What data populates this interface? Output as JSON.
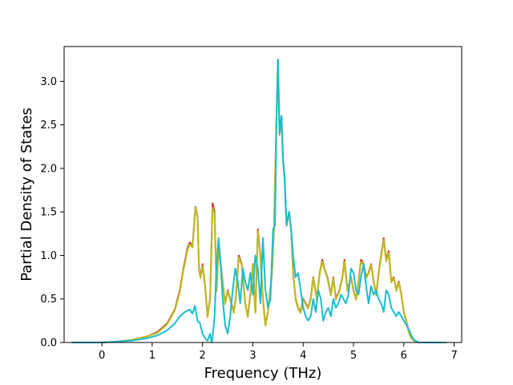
{
  "chart_data": {
    "type": "line",
    "title": "",
    "xlabel": "Frequency (THz)",
    "ylabel": "Partial Density of States",
    "xlim": [
      -0.75,
      7.15
    ],
    "ylim": [
      0.0,
      3.4
    ],
    "x_ticks": [
      0,
      1,
      2,
      3,
      4,
      5,
      6,
      7
    ],
    "x_tick_labels": [
      "0",
      "1",
      "2",
      "3",
      "4",
      "5",
      "6",
      "7"
    ],
    "y_ticks": [
      0.0,
      0.5,
      1.0,
      1.5,
      2.0,
      2.5,
      3.0
    ],
    "y_tick_labels": [
      "0.0",
      "0.5",
      "1.0",
      "1.5",
      "2.0",
      "2.5",
      "3.0"
    ],
    "grid": false,
    "legend": "none",
    "series": [
      {
        "color": "#d62728",
        "points": [
          [
            -0.6,
            0
          ],
          [
            0,
            0.0
          ],
          [
            0.3,
            0.01
          ],
          [
            0.6,
            0.03
          ],
          [
            0.9,
            0.07
          ],
          [
            1.1,
            0.12
          ],
          [
            1.3,
            0.22
          ],
          [
            1.45,
            0.38
          ],
          [
            1.55,
            0.6
          ],
          [
            1.62,
            0.85
          ],
          [
            1.7,
            1.08
          ],
          [
            1.75,
            1.15
          ],
          [
            1.8,
            1.1
          ],
          [
            1.86,
            1.56
          ],
          [
            1.9,
            1.45
          ],
          [
            1.93,
            0.85
          ],
          [
            1.96,
            0.75
          ],
          [
            2.0,
            0.9
          ],
          [
            2.05,
            0.65
          ],
          [
            2.1,
            0.3
          ],
          [
            2.15,
            0.5
          ],
          [
            2.2,
            1.6
          ],
          [
            2.24,
            1.5
          ],
          [
            2.28,
            0.6
          ],
          [
            2.32,
            1.1
          ],
          [
            2.38,
            0.8
          ],
          [
            2.45,
            0.45
          ],
          [
            2.5,
            0.6
          ],
          [
            2.55,
            0.5
          ],
          [
            2.62,
            0.35
          ],
          [
            2.66,
            0.5
          ],
          [
            2.72,
            1.0
          ],
          [
            2.78,
            0.9
          ],
          [
            2.85,
            0.45
          ],
          [
            2.9,
            0.3
          ],
          [
            2.95,
            0.55
          ],
          [
            3.0,
            0.9
          ],
          [
            3.05,
            0.35
          ],
          [
            3.1,
            1.3
          ],
          [
            3.15,
            1.0
          ],
          [
            3.2,
            0.5
          ],
          [
            3.25,
            0.2
          ],
          [
            3.3,
            0.35
          ],
          [
            3.38,
            0.8
          ],
          [
            3.42,
            1.3
          ],
          [
            3.47,
            2.6
          ],
          [
            3.5,
            3.25
          ],
          [
            3.53,
            2.4
          ],
          [
            3.57,
            2.6
          ],
          [
            3.6,
            2.1
          ],
          [
            3.63,
            1.9
          ],
          [
            3.67,
            1.35
          ],
          [
            3.72,
            1.5
          ],
          [
            3.76,
            1.3
          ],
          [
            3.8,
            0.8
          ],
          [
            3.85,
            0.5
          ],
          [
            3.9,
            0.4
          ],
          [
            3.95,
            0.35
          ],
          [
            4.0,
            0.5
          ],
          [
            4.05,
            0.45
          ],
          [
            4.1,
            0.4
          ],
          [
            4.15,
            0.5
          ],
          [
            4.2,
            0.75
          ],
          [
            4.27,
            0.5
          ],
          [
            4.33,
            0.8
          ],
          [
            4.38,
            0.95
          ],
          [
            4.42,
            0.85
          ],
          [
            4.48,
            0.75
          ],
          [
            4.55,
            0.55
          ],
          [
            4.6,
            0.75
          ],
          [
            4.65,
            0.5
          ],
          [
            4.72,
            0.6
          ],
          [
            4.78,
            0.75
          ],
          [
            4.82,
            0.95
          ],
          [
            4.88,
            0.6
          ],
          [
            4.95,
            0.75
          ],
          [
            5.0,
            0.6
          ],
          [
            5.05,
            0.5
          ],
          [
            5.1,
            0.7
          ],
          [
            5.15,
            0.95
          ],
          [
            5.2,
            0.9
          ],
          [
            5.25,
            0.75
          ],
          [
            5.3,
            0.8
          ],
          [
            5.35,
            0.9
          ],
          [
            5.4,
            0.7
          ],
          [
            5.45,
            0.55
          ],
          [
            5.5,
            0.8
          ],
          [
            5.55,
            1.0
          ],
          [
            5.6,
            1.2
          ],
          [
            5.65,
            0.95
          ],
          [
            5.7,
            1.05
          ],
          [
            5.75,
            0.7
          ],
          [
            5.8,
            0.75
          ],
          [
            5.85,
            0.6
          ],
          [
            5.9,
            0.7
          ],
          [
            5.95,
            0.55
          ],
          [
            6.0,
            0.35
          ],
          [
            6.05,
            0.25
          ],
          [
            6.1,
            0.12
          ],
          [
            6.15,
            0.05
          ],
          [
            6.2,
            0.02
          ],
          [
            6.3,
            0
          ],
          [
            6.85,
            0
          ]
        ]
      },
      {
        "color": "#bcbd22",
        "points": [
          [
            -0.6,
            0
          ],
          [
            0,
            0.0
          ],
          [
            0.3,
            0.01
          ],
          [
            0.6,
            0.03
          ],
          [
            0.9,
            0.07
          ],
          [
            1.1,
            0.11
          ],
          [
            1.3,
            0.21
          ],
          [
            1.45,
            0.37
          ],
          [
            1.55,
            0.58
          ],
          [
            1.62,
            0.83
          ],
          [
            1.7,
            1.06
          ],
          [
            1.75,
            1.13
          ],
          [
            1.8,
            1.09
          ],
          [
            1.86,
            1.55
          ],
          [
            1.9,
            1.44
          ],
          [
            1.93,
            0.84
          ],
          [
            1.96,
            0.74
          ],
          [
            2.0,
            0.88
          ],
          [
            2.05,
            0.64
          ],
          [
            2.1,
            0.29
          ],
          [
            2.15,
            0.49
          ],
          [
            2.2,
            1.55
          ],
          [
            2.24,
            1.48
          ],
          [
            2.28,
            0.59
          ],
          [
            2.32,
            1.08
          ],
          [
            2.38,
            0.79
          ],
          [
            2.45,
            0.44
          ],
          [
            2.5,
            0.59
          ],
          [
            2.55,
            0.49
          ],
          [
            2.62,
            0.34
          ],
          [
            2.66,
            0.49
          ],
          [
            2.72,
            0.98
          ],
          [
            2.78,
            0.89
          ],
          [
            2.85,
            0.44
          ],
          [
            2.9,
            0.29
          ],
          [
            2.95,
            0.54
          ],
          [
            3.0,
            0.89
          ],
          [
            3.05,
            0.34
          ],
          [
            3.1,
            1.28
          ],
          [
            3.15,
            0.98
          ],
          [
            3.2,
            0.49
          ],
          [
            3.25,
            0.19
          ],
          [
            3.3,
            0.34
          ],
          [
            3.38,
            0.79
          ],
          [
            3.42,
            1.28
          ],
          [
            3.47,
            2.58
          ],
          [
            3.5,
            3.24
          ],
          [
            3.53,
            2.38
          ],
          [
            3.57,
            2.58
          ],
          [
            3.6,
            2.08
          ],
          [
            3.63,
            1.88
          ],
          [
            3.67,
            1.34
          ],
          [
            3.72,
            1.49
          ],
          [
            3.76,
            1.29
          ],
          [
            3.8,
            0.79
          ],
          [
            3.85,
            0.49
          ],
          [
            3.9,
            0.39
          ],
          [
            3.95,
            0.34
          ],
          [
            4.0,
            0.49
          ],
          [
            4.05,
            0.44
          ],
          [
            4.1,
            0.39
          ],
          [
            4.15,
            0.49
          ],
          [
            4.2,
            0.74
          ],
          [
            4.27,
            0.49
          ],
          [
            4.33,
            0.79
          ],
          [
            4.38,
            0.93
          ],
          [
            4.42,
            0.84
          ],
          [
            4.48,
            0.74
          ],
          [
            4.55,
            0.54
          ],
          [
            4.6,
            0.74
          ],
          [
            4.65,
            0.49
          ],
          [
            4.72,
            0.59
          ],
          [
            4.78,
            0.74
          ],
          [
            4.82,
            0.93
          ],
          [
            4.88,
            0.59
          ],
          [
            4.95,
            0.74
          ],
          [
            5.0,
            0.59
          ],
          [
            5.05,
            0.49
          ],
          [
            5.1,
            0.69
          ],
          [
            5.15,
            0.93
          ],
          [
            5.2,
            0.89
          ],
          [
            5.25,
            0.74
          ],
          [
            5.3,
            0.79
          ],
          [
            5.35,
            0.89
          ],
          [
            5.4,
            0.69
          ],
          [
            5.45,
            0.54
          ],
          [
            5.5,
            0.79
          ],
          [
            5.55,
            0.98
          ],
          [
            5.6,
            1.18
          ],
          [
            5.65,
            0.93
          ],
          [
            5.7,
            1.03
          ],
          [
            5.75,
            0.69
          ],
          [
            5.8,
            0.74
          ],
          [
            5.85,
            0.59
          ],
          [
            5.9,
            0.69
          ],
          [
            5.95,
            0.54
          ],
          [
            6.0,
            0.34
          ],
          [
            6.05,
            0.24
          ],
          [
            6.1,
            0.11
          ],
          [
            6.15,
            0.05
          ],
          [
            6.2,
            0.02
          ],
          [
            6.3,
            0
          ],
          [
            6.85,
            0
          ]
        ]
      },
      {
        "color": "#17becf",
        "points": [
          [
            -0.6,
            0
          ],
          [
            0,
            0.0
          ],
          [
            0.3,
            0.01
          ],
          [
            0.6,
            0.02
          ],
          [
            0.9,
            0.05
          ],
          [
            1.1,
            0.08
          ],
          [
            1.3,
            0.14
          ],
          [
            1.45,
            0.22
          ],
          [
            1.55,
            0.3
          ],
          [
            1.65,
            0.35
          ],
          [
            1.75,
            0.38
          ],
          [
            1.8,
            0.33
          ],
          [
            1.85,
            0.42
          ],
          [
            1.9,
            0.25
          ],
          [
            1.95,
            0.22
          ],
          [
            2.0,
            0.1
          ],
          [
            2.05,
            0.05
          ],
          [
            2.1,
            0.02
          ],
          [
            2.15,
            0.1
          ],
          [
            2.18,
            0.0
          ],
          [
            2.2,
            0.05
          ],
          [
            2.24,
            0.3
          ],
          [
            2.28,
            0.9
          ],
          [
            2.32,
            1.2
          ],
          [
            2.36,
            0.9
          ],
          [
            2.4,
            0.5
          ],
          [
            2.45,
            0.2
          ],
          [
            2.5,
            0.1
          ],
          [
            2.55,
            0.3
          ],
          [
            2.6,
            0.6
          ],
          [
            2.65,
            0.85
          ],
          [
            2.7,
            0.7
          ],
          [
            2.75,
            0.45
          ],
          [
            2.8,
            0.85
          ],
          [
            2.85,
            0.7
          ],
          [
            2.9,
            0.6
          ],
          [
            2.95,
            0.8
          ],
          [
            3.0,
            0.55
          ],
          [
            3.05,
            1.0
          ],
          [
            3.1,
            0.85
          ],
          [
            3.15,
            0.45
          ],
          [
            3.2,
            1.2
          ],
          [
            3.25,
            0.6
          ],
          [
            3.3,
            0.4
          ],
          [
            3.35,
            0.5
          ],
          [
            3.4,
            1.3
          ],
          [
            3.44,
            1.35
          ],
          [
            3.47,
            2.6
          ],
          [
            3.5,
            3.25
          ],
          [
            3.53,
            2.4
          ],
          [
            3.57,
            2.6
          ],
          [
            3.6,
            2.1
          ],
          [
            3.63,
            1.9
          ],
          [
            3.67,
            1.35
          ],
          [
            3.72,
            1.5
          ],
          [
            3.76,
            1.3
          ],
          [
            3.8,
            1.0
          ],
          [
            3.85,
            0.75
          ],
          [
            3.9,
            0.8
          ],
          [
            3.95,
            0.6
          ],
          [
            4.0,
            0.4
          ],
          [
            4.05,
            0.3
          ],
          [
            4.1,
            0.25
          ],
          [
            4.15,
            0.3
          ],
          [
            4.2,
            0.5
          ],
          [
            4.25,
            0.35
          ],
          [
            4.3,
            0.6
          ],
          [
            4.35,
            0.5
          ],
          [
            4.4,
            0.25
          ],
          [
            4.45,
            0.35
          ],
          [
            4.5,
            0.4
          ],
          [
            4.55,
            0.3
          ],
          [
            4.6,
            0.5
          ],
          [
            4.65,
            0.4
          ],
          [
            4.7,
            0.45
          ],
          [
            4.75,
            0.55
          ],
          [
            4.8,
            0.5
          ],
          [
            4.85,
            0.45
          ],
          [
            4.9,
            0.55
          ],
          [
            4.95,
            0.85
          ],
          [
            5.0,
            0.8
          ],
          [
            5.05,
            0.6
          ],
          [
            5.1,
            0.55
          ],
          [
            5.15,
            0.75
          ],
          [
            5.2,
            0.9
          ],
          [
            5.25,
            0.65
          ],
          [
            5.3,
            0.45
          ],
          [
            5.35,
            0.65
          ],
          [
            5.4,
            0.55
          ],
          [
            5.45,
            0.6
          ],
          [
            5.5,
            0.5
          ],
          [
            5.55,
            0.45
          ],
          [
            5.6,
            0.35
          ],
          [
            5.65,
            0.6
          ],
          [
            5.7,
            0.55
          ],
          [
            5.75,
            0.4
          ],
          [
            5.8,
            0.35
          ],
          [
            5.85,
            0.3
          ],
          [
            5.9,
            0.35
          ],
          [
            5.95,
            0.3
          ],
          [
            6.0,
            0.25
          ],
          [
            6.05,
            0.2
          ],
          [
            6.1,
            0.15
          ],
          [
            6.15,
            0.08
          ],
          [
            6.2,
            0.03
          ],
          [
            6.3,
            0
          ],
          [
            6.85,
            0
          ]
        ]
      }
    ]
  }
}
